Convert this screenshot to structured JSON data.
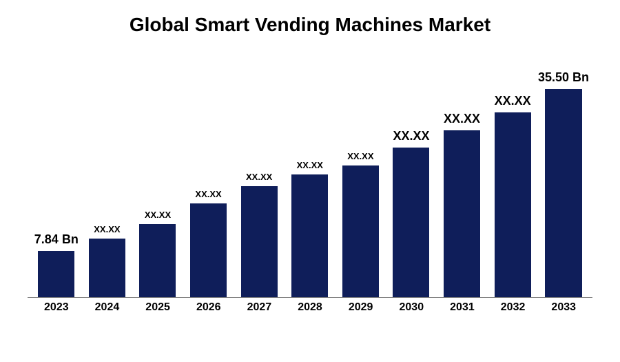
{
  "chart": {
    "type": "bar",
    "title": "Global Smart Vending Machines Market",
    "title_fontsize": 28,
    "title_color": "#000000",
    "background_color": "#ffffff",
    "axis_line_color": "#808080",
    "bar_color": "#0f1e5a",
    "bar_width_pct": 72,
    "ylim": [
      0,
      40
    ],
    "label_fontsize_small": 13,
    "label_fontsize_large": 18,
    "xaxis_fontsize": 16,
    "categories": [
      "2023",
      "2024",
      "2025",
      "2026",
      "2027",
      "2028",
      "2029",
      "2030",
      "2031",
      "2032",
      "2033"
    ],
    "bars": [
      {
        "label": "7.84 Bn",
        "value": 7.84,
        "label_size": "large"
      },
      {
        "label": "XX.XX",
        "value": 10.0,
        "label_size": "small"
      },
      {
        "label": "XX.XX",
        "value": 12.5,
        "label_size": "small"
      },
      {
        "label": "XX.XX",
        "value": 16.0,
        "label_size": "small"
      },
      {
        "label": "XX.XX",
        "value": 19.0,
        "label_size": "small"
      },
      {
        "label": "XX.XX",
        "value": 21.0,
        "label_size": "small"
      },
      {
        "label": "XX.XX",
        "value": 22.5,
        "label_size": "small"
      },
      {
        "label": "XX.XX",
        "value": 25.5,
        "label_size": "large"
      },
      {
        "label": "XX.XX",
        "value": 28.5,
        "label_size": "large"
      },
      {
        "label": "XX.XX",
        "value": 31.5,
        "label_size": "large"
      },
      {
        "label": "35.50 Bn",
        "value": 35.5,
        "label_size": "large"
      }
    ]
  }
}
